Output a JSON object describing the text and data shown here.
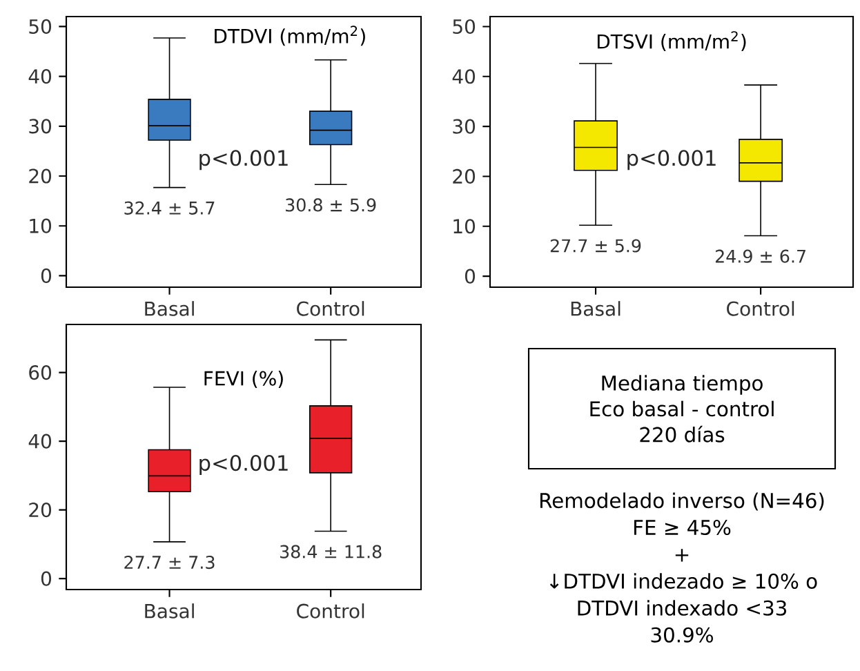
{
  "chart_data": [
    {
      "type": "box",
      "title": "DTDVI (mm/m$^{2}$)",
      "categories": [
        "Basal",
        "Control"
      ],
      "color": "#3a7abf",
      "boxes": [
        {
          "low": 17.7,
          "q1": 27.2,
          "median": 30.1,
          "q3": 35.4,
          "high": 47.7
        },
        {
          "low": 18.3,
          "q1": 26.3,
          "median": 29.2,
          "q3": 33.0,
          "high": 43.3
        }
      ],
      "ylim": [
        -2.3,
        52
      ],
      "yticks": [
        0,
        10,
        20,
        30,
        40,
        50
      ],
      "annotations": [
        "p<0.001",
        "32.4 ± 5.7",
        "30.8 ± 5.9"
      ]
    },
    {
      "type": "box",
      "title": "DTSVI (mm/m$^{2}$)",
      "categories": [
        "Basal",
        "Control"
      ],
      "color": "#f5e800",
      "boxes": [
        {
          "low": 10.2,
          "q1": 21.2,
          "median": 25.8,
          "q3": 31.1,
          "high": 42.6
        },
        {
          "low": 8.1,
          "q1": 19.0,
          "median": 22.7,
          "q3": 27.4,
          "high": 38.3
        }
      ],
      "ylim": [
        -2.2,
        52
      ],
      "yticks": [
        0,
        10,
        20,
        30,
        40,
        50
      ],
      "annotations": [
        "p<0.001",
        "27.7 ± 5.9",
        "24.9 ± 6.7"
      ]
    },
    {
      "type": "box",
      "title": "FEVI (%)",
      "categories": [
        "Basal",
        "Control"
      ],
      "color": "#e8202a",
      "boxes": [
        {
          "low": 10.7,
          "q1": 25.3,
          "median": 29.9,
          "q3": 37.5,
          "high": 55.7
        },
        {
          "low": 13.8,
          "q1": 30.8,
          "median": 40.8,
          "q3": 50.3,
          "high": 69.5
        }
      ],
      "ylim": [
        -3.2,
        74
      ],
      "yticks": [
        0,
        20,
        40,
        60
      ],
      "annotations": [
        "p<0.001",
        "27.7 ± 7.3",
        "38.4 ± 11.8"
      ]
    },
    {
      "type": "other",
      "annotations": [
        "Mediana tiempo",
        "Eco basal - control",
        "220 días",
        "Remodelado inverso (N=46)",
        "FE ≥ 45%",
        "+",
        "↓DTDVI indezado ≥ 10% o",
        "DTDVI indexado <33",
        "30.9%"
      ]
    }
  ]
}
